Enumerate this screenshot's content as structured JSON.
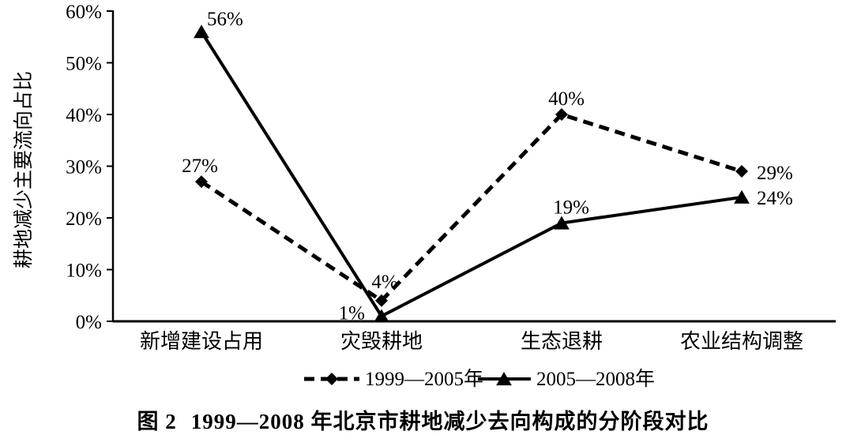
{
  "figure": {
    "caption_label": "图 2",
    "caption_text": "1999—2008 年北京市耕地减少去向构成的分阶段对比"
  },
  "chart_data": {
    "type": "line",
    "title": "",
    "xlabel": "",
    "ylabel": "耕地减少主要流向占比",
    "ylim": [
      0,
      60
    ],
    "ytick_step": 10,
    "ytick_labels": [
      "0%",
      "10%",
      "20%",
      "30%",
      "40%",
      "50%",
      "60%"
    ],
    "categories": [
      "新增建设占用",
      "灾毁耕地",
      "生态退耕",
      "农业结构调整"
    ],
    "series": [
      {
        "name": "1999—2005年",
        "marker": "diamond",
        "line_style": "dashed",
        "values": [
          27,
          4,
          40,
          29
        ],
        "point_labels": [
          "27%",
          "4%",
          "40%",
          "29%"
        ]
      },
      {
        "name": "2005—2008年",
        "marker": "triangle",
        "line_style": "solid",
        "values": [
          56,
          1,
          19,
          24
        ],
        "point_labels": [
          "56%",
          "1%",
          "19%",
          "24%"
        ]
      }
    ],
    "legend_position": "bottom",
    "grid": false,
    "colors": {
      "line": "#000000",
      "text": "#000000",
      "background": "#ffffff"
    }
  }
}
